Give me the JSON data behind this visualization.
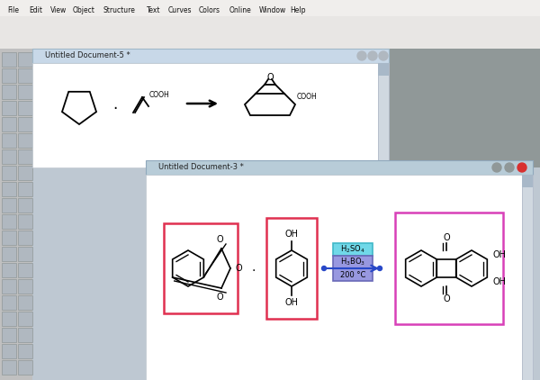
{
  "bg_color": "#bec8d2",
  "menubar_color": "#f0eeec",
  "toolbar1_color": "#e8e6e4",
  "toolbar2_color": "#e8e6e4",
  "sidebar_color": "#c0c0c0",
  "right_gray": "#909898",
  "doc1_title": "Untitled Document-5 *",
  "doc2_title": "Untitled Document-3 *",
  "doc1_titlebar": "#c8d8e8",
  "doc2_titlebar": "#b8ccd8",
  "doc_bg": "#ffffff",
  "red_box": "#e03050",
  "pink_box": "#d840b8",
  "cyan_box_bg": "#70d8e8",
  "cyan_box_edge": "#40b8c8",
  "purple_box_bg": "#9898e0",
  "purple_box_edge": "#6868b8",
  "blue_arrow": "#2848c8",
  "black": "#000000",
  "menu_items": [
    "File",
    "Edit",
    "View",
    "Object",
    "Structure",
    "Text",
    "Curves",
    "Colors",
    "Online",
    "Window",
    "Help"
  ]
}
